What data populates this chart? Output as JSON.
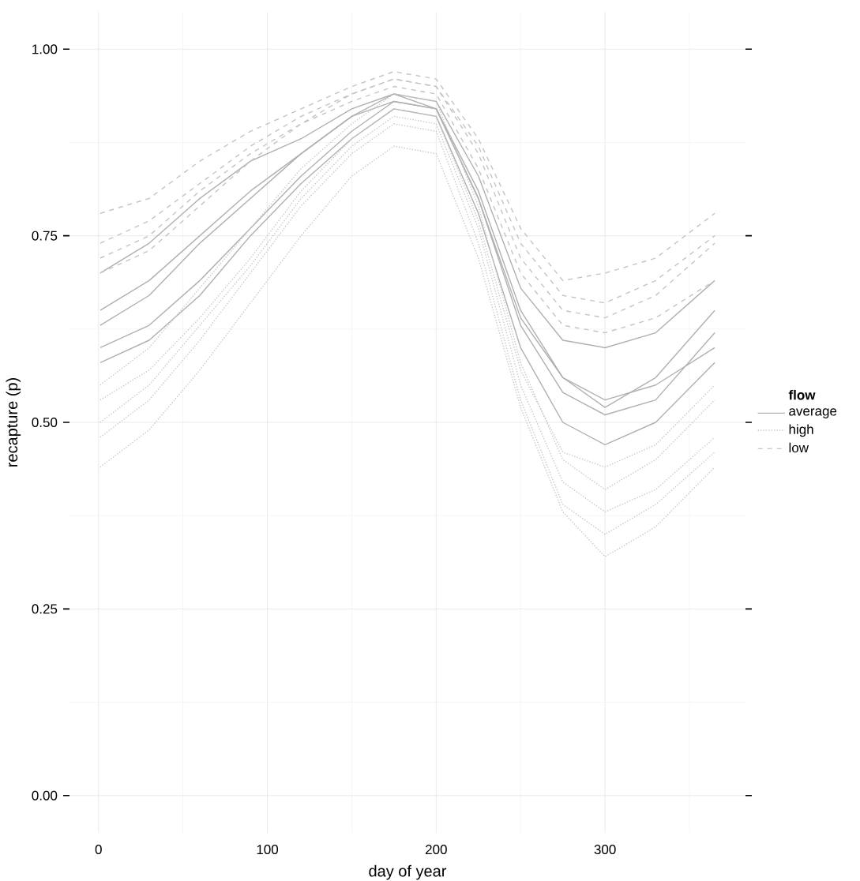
{
  "chart_data": {
    "type": "line",
    "xlabel": "day of year",
    "ylabel": "recapture (p)",
    "legend_title": "flow",
    "legend": "right",
    "grid": true,
    "xlim": [
      -17.2,
      383.2
    ],
    "ylim": [
      -0.05,
      1.05
    ],
    "xticks": [
      0,
      100,
      200,
      300
    ],
    "yticks": [
      {
        "value": 0,
        "label": "0.00"
      },
      {
        "value": 0.25,
        "label": "0.25"
      },
      {
        "value": 0.5,
        "label": "0.50"
      },
      {
        "value": 0.75,
        "label": "0.75"
      },
      {
        "value": 1,
        "label": "1.00"
      }
    ],
    "x": [
      1,
      30,
      60,
      90,
      120,
      150,
      175,
      200,
      225,
      250,
      275,
      300,
      330,
      365
    ],
    "series": [
      {
        "name": "average",
        "color": "#b0b0b0",
        "line_style": "solid",
        "values": [
          0.7,
          0.74,
          0.8,
          0.85,
          0.88,
          0.92,
          0.94,
          0.92,
          0.8,
          0.64,
          0.56,
          0.53,
          0.55,
          0.6
        ]
      },
      {
        "color": "#b0b0b0",
        "line_style": "solid",
        "values": [
          0.65,
          0.69,
          0.75,
          0.81,
          0.86,
          0.91,
          0.93,
          0.92,
          0.8,
          0.63,
          0.54,
          0.51,
          0.53,
          0.62
        ]
      },
      {
        "color": "#b0b0b0",
        "line_style": "solid",
        "values": [
          0.6,
          0.63,
          0.69,
          0.76,
          0.83,
          0.89,
          0.93,
          0.92,
          0.81,
          0.65,
          0.56,
          0.52,
          0.56,
          0.65
        ]
      },
      {
        "color": "#b0b0b0",
        "line_style": "solid",
        "values": [
          0.58,
          0.61,
          0.67,
          0.75,
          0.82,
          0.88,
          0.92,
          0.91,
          0.78,
          0.6,
          0.5,
          0.47,
          0.5,
          0.58
        ]
      },
      {
        "color": "#b0b0b0",
        "line_style": "solid",
        "values": [
          0.63,
          0.67,
          0.74,
          0.8,
          0.86,
          0.91,
          0.94,
          0.93,
          0.83,
          0.68,
          0.61,
          0.6,
          0.62,
          0.69
        ]
      },
      {
        "name": "high",
        "color": "#c8c8c8",
        "line_style": "dotted",
        "values": [
          0.44,
          0.49,
          0.57,
          0.66,
          0.75,
          0.83,
          0.87,
          0.86,
          0.72,
          0.52,
          0.38,
          0.32,
          0.36,
          0.44
        ]
      },
      {
        "color": "#c8c8c8",
        "line_style": "dotted",
        "values": [
          0.5,
          0.55,
          0.63,
          0.71,
          0.8,
          0.87,
          0.91,
          0.9,
          0.76,
          0.55,
          0.42,
          0.38,
          0.41,
          0.48
        ]
      },
      {
        "color": "#c8c8c8",
        "line_style": "dotted",
        "values": [
          0.55,
          0.6,
          0.68,
          0.76,
          0.84,
          0.9,
          0.94,
          0.93,
          0.79,
          0.58,
          0.45,
          0.41,
          0.45,
          0.53
        ]
      },
      {
        "color": "#c8c8c8",
        "line_style": "dotted",
        "values": [
          0.48,
          0.53,
          0.61,
          0.7,
          0.79,
          0.86,
          0.9,
          0.89,
          0.74,
          0.53,
          0.39,
          0.35,
          0.39,
          0.46
        ]
      },
      {
        "color": "#c8c8c8",
        "line_style": "dotted",
        "values": [
          0.53,
          0.57,
          0.64,
          0.72,
          0.81,
          0.88,
          0.92,
          0.91,
          0.77,
          0.57,
          0.46,
          0.44,
          0.47,
          0.55
        ]
      },
      {
        "name": "low",
        "color": "#c4c4c4",
        "line_style": "dashed",
        "values": [
          0.78,
          0.8,
          0.85,
          0.89,
          0.92,
          0.95,
          0.97,
          0.96,
          0.88,
          0.76,
          0.69,
          0.7,
          0.72,
          0.78
        ]
      },
      {
        "color": "#c4c4c4",
        "line_style": "dashed",
        "values": [
          0.74,
          0.77,
          0.82,
          0.87,
          0.91,
          0.94,
          0.96,
          0.95,
          0.86,
          0.72,
          0.65,
          0.64,
          0.67,
          0.74
        ]
      },
      {
        "color": "#c4c4c4",
        "line_style": "dashed",
        "values": [
          0.7,
          0.73,
          0.79,
          0.85,
          0.9,
          0.93,
          0.95,
          0.94,
          0.84,
          0.7,
          0.63,
          0.62,
          0.64,
          0.69
        ]
      },
      {
        "color": "#c4c4c4",
        "line_style": "dashed",
        "values": [
          0.72,
          0.75,
          0.81,
          0.86,
          0.9,
          0.94,
          0.96,
          0.95,
          0.87,
          0.74,
          0.67,
          0.66,
          0.69,
          0.75
        ]
      }
    ]
  }
}
